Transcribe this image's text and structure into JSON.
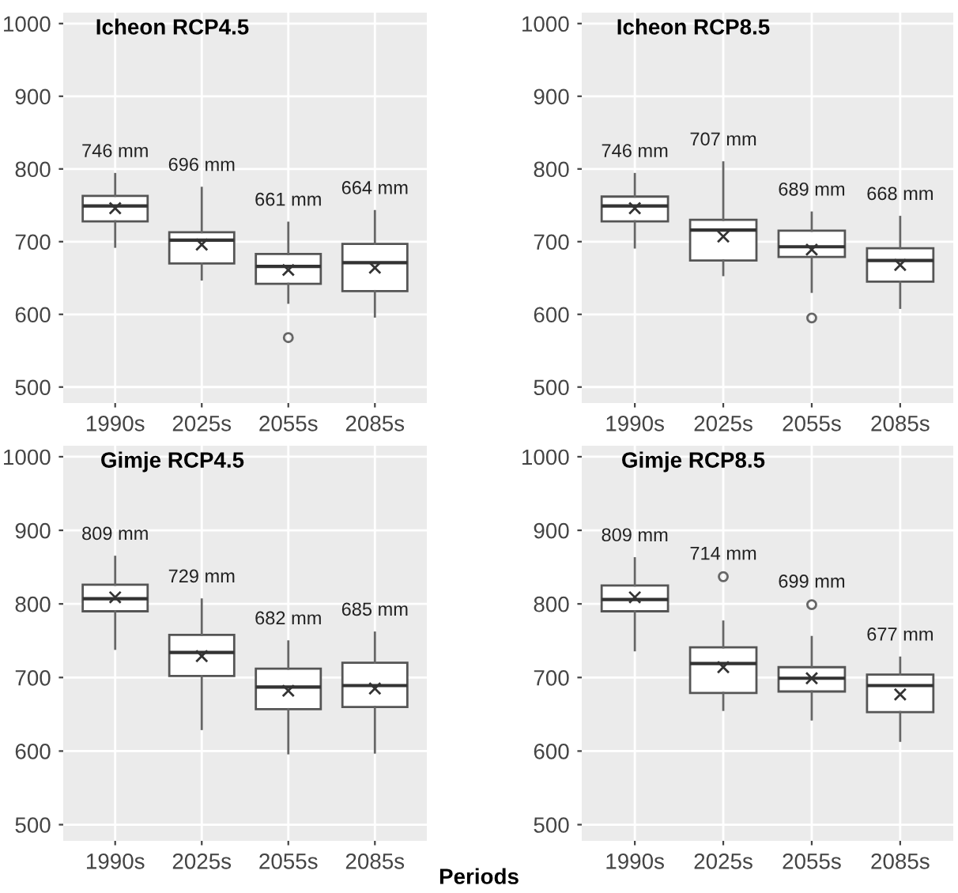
{
  "chart_data": [
    {
      "type": "box",
      "title": "Icheon RCP4.5",
      "categories": [
        "1990s",
        "2025s",
        "2055s",
        "2085s"
      ],
      "ylim": [
        478,
        1015
      ],
      "yticks": [
        500,
        600,
        700,
        800,
        900,
        1000
      ],
      "grid": true,
      "marker": "cross",
      "boxes": [
        {
          "low": 693,
          "q1": 728,
          "median": 749,
          "q3": 763,
          "high": 793,
          "mean": 746
        },
        {
          "low": 648,
          "q1": 670,
          "median": 702,
          "q3": 713,
          "high": 774,
          "mean": 696
        },
        {
          "low": 616,
          "q1": 642,
          "median": 666,
          "q3": 683,
          "high": 726,
          "mean": 661,
          "outliers": [
            568
          ]
        },
        {
          "low": 597,
          "q1": 632,
          "median": 671,
          "q3": 697,
          "high": 742,
          "mean": 664
        }
      ],
      "annotations": [
        "746 mm",
        "696 mm",
        "661 mm",
        "664 mm"
      ]
    },
    {
      "type": "box",
      "title": "Icheon RCP8.5",
      "categories": [
        "1990s",
        "2025s",
        "2055s",
        "2085s"
      ],
      "ylim": [
        478,
        1015
      ],
      "yticks": [
        500,
        600,
        700,
        800,
        900,
        1000
      ],
      "grid": true,
      "marker": "cross",
      "boxes": [
        {
          "low": 692,
          "q1": 728,
          "median": 749,
          "q3": 762,
          "high": 793,
          "mean": 746
        },
        {
          "low": 654,
          "q1": 674,
          "median": 716,
          "q3": 730,
          "high": 809,
          "mean": 707
        },
        {
          "low": 631,
          "q1": 679,
          "median": 693,
          "q3": 715,
          "high": 740,
          "mean": 689,
          "outliers": [
            595
          ]
        },
        {
          "low": 609,
          "q1": 645,
          "median": 674,
          "q3": 691,
          "high": 734,
          "mean": 668
        }
      ],
      "annotations": [
        "746 mm",
        "707 mm",
        "689 mm",
        "668 mm"
      ]
    },
    {
      "type": "box",
      "title": "Gimje RCP4.5",
      "categories": [
        "1990s",
        "2025s",
        "2055s",
        "2085s"
      ],
      "ylim": [
        478,
        1015
      ],
      "yticks": [
        500,
        600,
        700,
        800,
        900,
        1000
      ],
      "grid": true,
      "marker": "cross",
      "xlabel": "Periods",
      "boxes": [
        {
          "low": 739,
          "q1": 790,
          "median": 807,
          "q3": 826,
          "high": 864,
          "mean": 809
        },
        {
          "low": 630,
          "q1": 702,
          "median": 734,
          "q3": 758,
          "high": 806,
          "mean": 729
        },
        {
          "low": 597,
          "q1": 657,
          "median": 687,
          "q3": 712,
          "high": 749,
          "mean": 682
        },
        {
          "low": 598,
          "q1": 660,
          "median": 689,
          "q3": 720,
          "high": 761,
          "mean": 685
        }
      ],
      "annotations": [
        "809 mm",
        "729 mm",
        "682 mm",
        "685 mm"
      ]
    },
    {
      "type": "box",
      "title": "Gimje RCP8.5",
      "categories": [
        "1990s",
        "2025s",
        "2055s",
        "2085s"
      ],
      "ylim": [
        478,
        1015
      ],
      "yticks": [
        500,
        600,
        700,
        800,
        900,
        1000
      ],
      "grid": true,
      "marker": "cross",
      "boxes": [
        {
          "low": 737,
          "q1": 790,
          "median": 806,
          "q3": 825,
          "high": 862,
          "mean": 809
        },
        {
          "low": 656,
          "q1": 679,
          "median": 719,
          "q3": 741,
          "high": 776,
          "mean": 714,
          "outliers": [
            837
          ]
        },
        {
          "low": 643,
          "q1": 681,
          "median": 699,
          "q3": 714,
          "high": 755,
          "mean": 699,
          "outliers": [
            799
          ]
        },
        {
          "low": 614,
          "q1": 653,
          "median": 689,
          "q3": 704,
          "high": 727,
          "mean": 677
        }
      ],
      "annotations": [
        "809 mm",
        "714 mm",
        "699 mm",
        "677 mm"
      ]
    }
  ]
}
